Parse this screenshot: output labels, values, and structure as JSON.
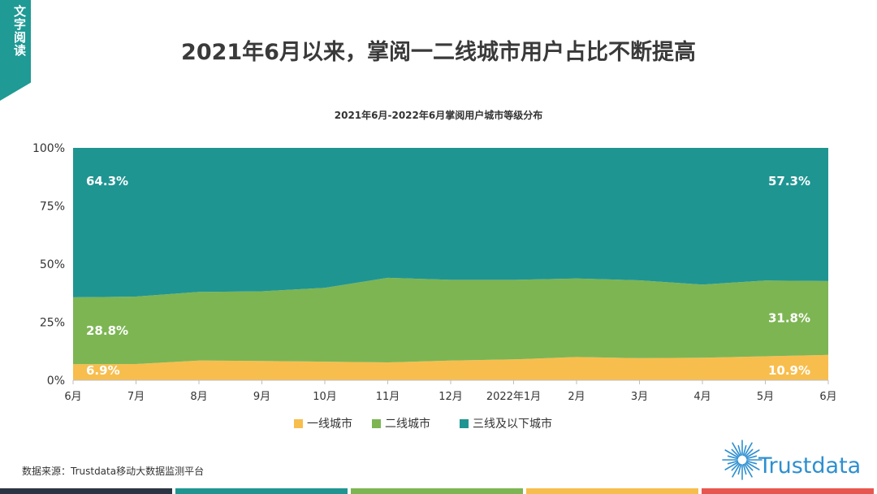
{
  "corner_tab": {
    "text": "文字阅读"
  },
  "page_title": "2021年6月以来，掌阅一二线城市用户占比不断提高",
  "source": "数据来源：Trustdata移动大数据监测平台",
  "logo": {
    "text": "Trustdata"
  },
  "colors": {
    "tier1": "#f7be4e",
    "tier2": "#7db553",
    "tier3": "#1f9592",
    "accent": "#1f9a95",
    "bottom_bar": [
      "#2b3442",
      "#1f9592",
      "#7db553",
      "#f7be4e",
      "#e8574f"
    ]
  },
  "chart_data": {
    "type": "area",
    "stacked": true,
    "title": "2021年6月-2022年6月掌阅用户城市等级分布",
    "categories": [
      "6月",
      "7月",
      "8月",
      "9月",
      "10月",
      "11月",
      "12月",
      "2022年1月",
      "2月",
      "3月",
      "4月",
      "5月",
      "6月"
    ],
    "ylim": [
      0,
      100
    ],
    "yticks": [
      "0%",
      "25%",
      "50%",
      "75%",
      "100%"
    ],
    "legend_position": "bottom",
    "grid": false,
    "series": [
      {
        "name": "一线城市",
        "color": "#f7be4e",
        "values": [
          6.9,
          7.0,
          8.5,
          8.3,
          8.0,
          7.7,
          8.5,
          9.0,
          10.0,
          9.5,
          9.7,
          10.3,
          10.9
        ]
      },
      {
        "name": "二线城市",
        "color": "#7db553",
        "values": [
          28.8,
          29.0,
          29.5,
          30.0,
          31.8,
          36.4,
          34.7,
          34.2,
          33.8,
          33.5,
          31.5,
          32.6,
          31.8
        ]
      },
      {
        "name": "三线及以下城市",
        "color": "#1f9592",
        "values": [
          64.3,
          64.0,
          62.0,
          61.7,
          60.2,
          55.9,
          56.8,
          56.8,
          56.2,
          57.0,
          58.8,
          57.1,
          57.3
        ]
      }
    ],
    "data_labels": [
      {
        "series": 2,
        "index": 0,
        "text": "64.3%"
      },
      {
        "series": 1,
        "index": 0,
        "text": "28.8%"
      },
      {
        "series": 0,
        "index": 0,
        "text": "6.9%"
      },
      {
        "series": 2,
        "index": 12,
        "text": "57.3%"
      },
      {
        "series": 1,
        "index": 12,
        "text": "31.8%"
      },
      {
        "series": 0,
        "index": 12,
        "text": "10.9%"
      }
    ]
  }
}
